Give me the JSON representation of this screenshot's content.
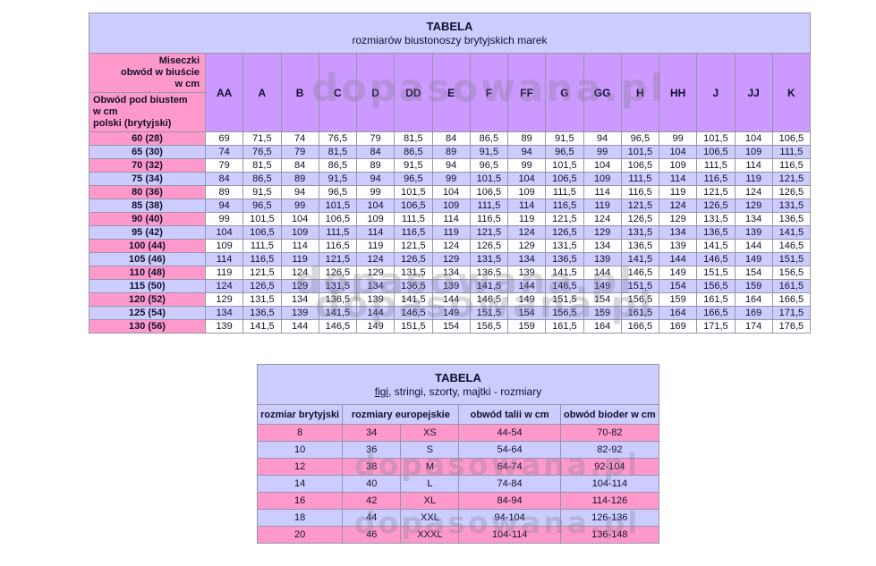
{
  "watermark": {
    "text": "dopasowana.pl"
  },
  "bra_table": {
    "title": "TABELA",
    "subtitle": "rozmiarów biustonoszy brytyjskich marek",
    "corner_top": "Miseczki\nobwód w biuście\nw cm",
    "corner_bottom": "Obwód pod biustem\nw cm\npolski (brytyjski)",
    "cup_columns": [
      "AA",
      "A",
      "B",
      "C",
      "D",
      "DD",
      "E",
      "F",
      "FF",
      "G",
      "GG",
      "H",
      "HH",
      "J",
      "JJ",
      "K"
    ],
    "rows": [
      {
        "label": "60 (28)",
        "values": [
          "69",
          "71,5",
          "74",
          "76,5",
          "79",
          "81,5",
          "84",
          "86,5",
          "89",
          "91,5",
          "94",
          "96,5",
          "99",
          "101,5",
          "104",
          "106,5"
        ]
      },
      {
        "label": "65 (30)",
        "values": [
          "74",
          "76,5",
          "79",
          "81,5",
          "84",
          "86,5",
          "89",
          "91,5",
          "94",
          "96,5",
          "99",
          "101,5",
          "104",
          "106,5",
          "109",
          "111,5"
        ]
      },
      {
        "label": "70 (32)",
        "values": [
          "79",
          "81,5",
          "84",
          "86,5",
          "89",
          "91,5",
          "94",
          "96,5",
          "99",
          "101,5",
          "104",
          "106,5",
          "109",
          "111,5",
          "114",
          "116,5"
        ]
      },
      {
        "label": "75 (34)",
        "values": [
          "84",
          "86,5",
          "89",
          "91,5",
          "94",
          "96,5",
          "99",
          "101,5",
          "104",
          "106,5",
          "109",
          "111,5",
          "114",
          "116,5",
          "119",
          "121,5"
        ]
      },
      {
        "label": "80 (36)",
        "values": [
          "89",
          "91,5",
          "94",
          "96,5",
          "99",
          "101,5",
          "104",
          "106,5",
          "109",
          "111,5",
          "114",
          "116,5",
          "119",
          "121,5",
          "124",
          "126,5"
        ]
      },
      {
        "label": "85 (38)",
        "values": [
          "94",
          "96,5",
          "99",
          "101,5",
          "104",
          "106,5",
          "109",
          "111,5",
          "114",
          "116,5",
          "119",
          "121,5",
          "124",
          "126,5",
          "129",
          "131,5"
        ]
      },
      {
        "label": "90 (40)",
        "values": [
          "99",
          "101,5",
          "104",
          "106,5",
          "109",
          "111,5",
          "114",
          "116,5",
          "119",
          "121,5",
          "124",
          "126,5",
          "129",
          "131,5",
          "134",
          "136,5"
        ]
      },
      {
        "label": "95 (42)",
        "values": [
          "104",
          "106,5",
          "109",
          "111,5",
          "114",
          "116,5",
          "119",
          "121,5",
          "124",
          "126,5",
          "129",
          "131,5",
          "134",
          "136,5",
          "139",
          "141,5"
        ]
      },
      {
        "label": "100 (44)",
        "values": [
          "109",
          "111,5",
          "114",
          "116,5",
          "119",
          "121,5",
          "124",
          "126,5",
          "129",
          "131,5",
          "134",
          "136,5",
          "139",
          "141,5",
          "144",
          "146,5"
        ]
      },
      {
        "label": "105 (46)",
        "values": [
          "114",
          "116,5",
          "119",
          "121,5",
          "124",
          "126,5",
          "129",
          "131,5",
          "134",
          "136,5",
          "139",
          "141,5",
          "144",
          "146,5",
          "149",
          "151,5"
        ]
      },
      {
        "label": "110 (48)",
        "values": [
          "119",
          "121,5",
          "124",
          "126,5",
          "129",
          "131,5",
          "134",
          "136,5",
          "139",
          "141,5",
          "144",
          "146,5",
          "149",
          "151,5",
          "154",
          "156,5"
        ]
      },
      {
        "label": "115 (50)",
        "values": [
          "124",
          "126,5",
          "129",
          "131,5",
          "134",
          "136,5",
          "139",
          "141,5",
          "144",
          "146,5",
          "149",
          "151,5",
          "154",
          "156,5",
          "159",
          "161,5"
        ]
      },
      {
        "label": "120 (52)",
        "values": [
          "129",
          "131,5",
          "134",
          "136,5",
          "139",
          "141,5",
          "144",
          "146,5",
          "149",
          "151,5",
          "154",
          "156,5",
          "159",
          "161,5",
          "164",
          "166,5"
        ]
      },
      {
        "label": "125 (54)",
        "values": [
          "134",
          "136,5",
          "139",
          "141,5",
          "144",
          "146,5",
          "149",
          "151,5",
          "154",
          "156,5",
          "159",
          "161,5",
          "164",
          "166,5",
          "169",
          "171,5"
        ]
      },
      {
        "label": "130 (56)",
        "values": [
          "139",
          "141,5",
          "144",
          "146,5",
          "149",
          "151,5",
          "154",
          "156,5",
          "159",
          "161,5",
          "164",
          "166,5",
          "169",
          "171,5",
          "174",
          "176,5"
        ]
      }
    ]
  },
  "panty_table": {
    "title": "TABELA",
    "subtitle_link": "figi",
    "subtitle_rest": ", stringi, szorty, majtki - rozmiary",
    "columns": [
      {
        "label": "rozmiar brytyjski",
        "span": 1
      },
      {
        "label": "rozmiary europejskie",
        "span": 2
      },
      {
        "label": "obwód talii w cm",
        "span": 1
      },
      {
        "label": "obwód bioder w cm",
        "span": 1
      }
    ],
    "rows": [
      [
        "8",
        "34",
        "XS",
        "44-54",
        "70-82"
      ],
      [
        "10",
        "36",
        "S",
        "54-64",
        "82-92"
      ],
      [
        "12",
        "38",
        "M",
        "64-74",
        "92-104"
      ],
      [
        "14",
        "40",
        "L",
        "74-84",
        "104-114"
      ],
      [
        "16",
        "42",
        "XL",
        "84-94",
        "114-126"
      ],
      [
        "18",
        "44",
        "XXL",
        "94-104",
        "126-136"
      ],
      [
        "20",
        "46",
        "XXXL",
        "104-114",
        "136-148"
      ]
    ]
  },
  "colors": {
    "pink": "#ff99cc",
    "lavender": "#ccccff",
    "purple_header": "#cc99ff",
    "title_block": "#ccccff"
  }
}
